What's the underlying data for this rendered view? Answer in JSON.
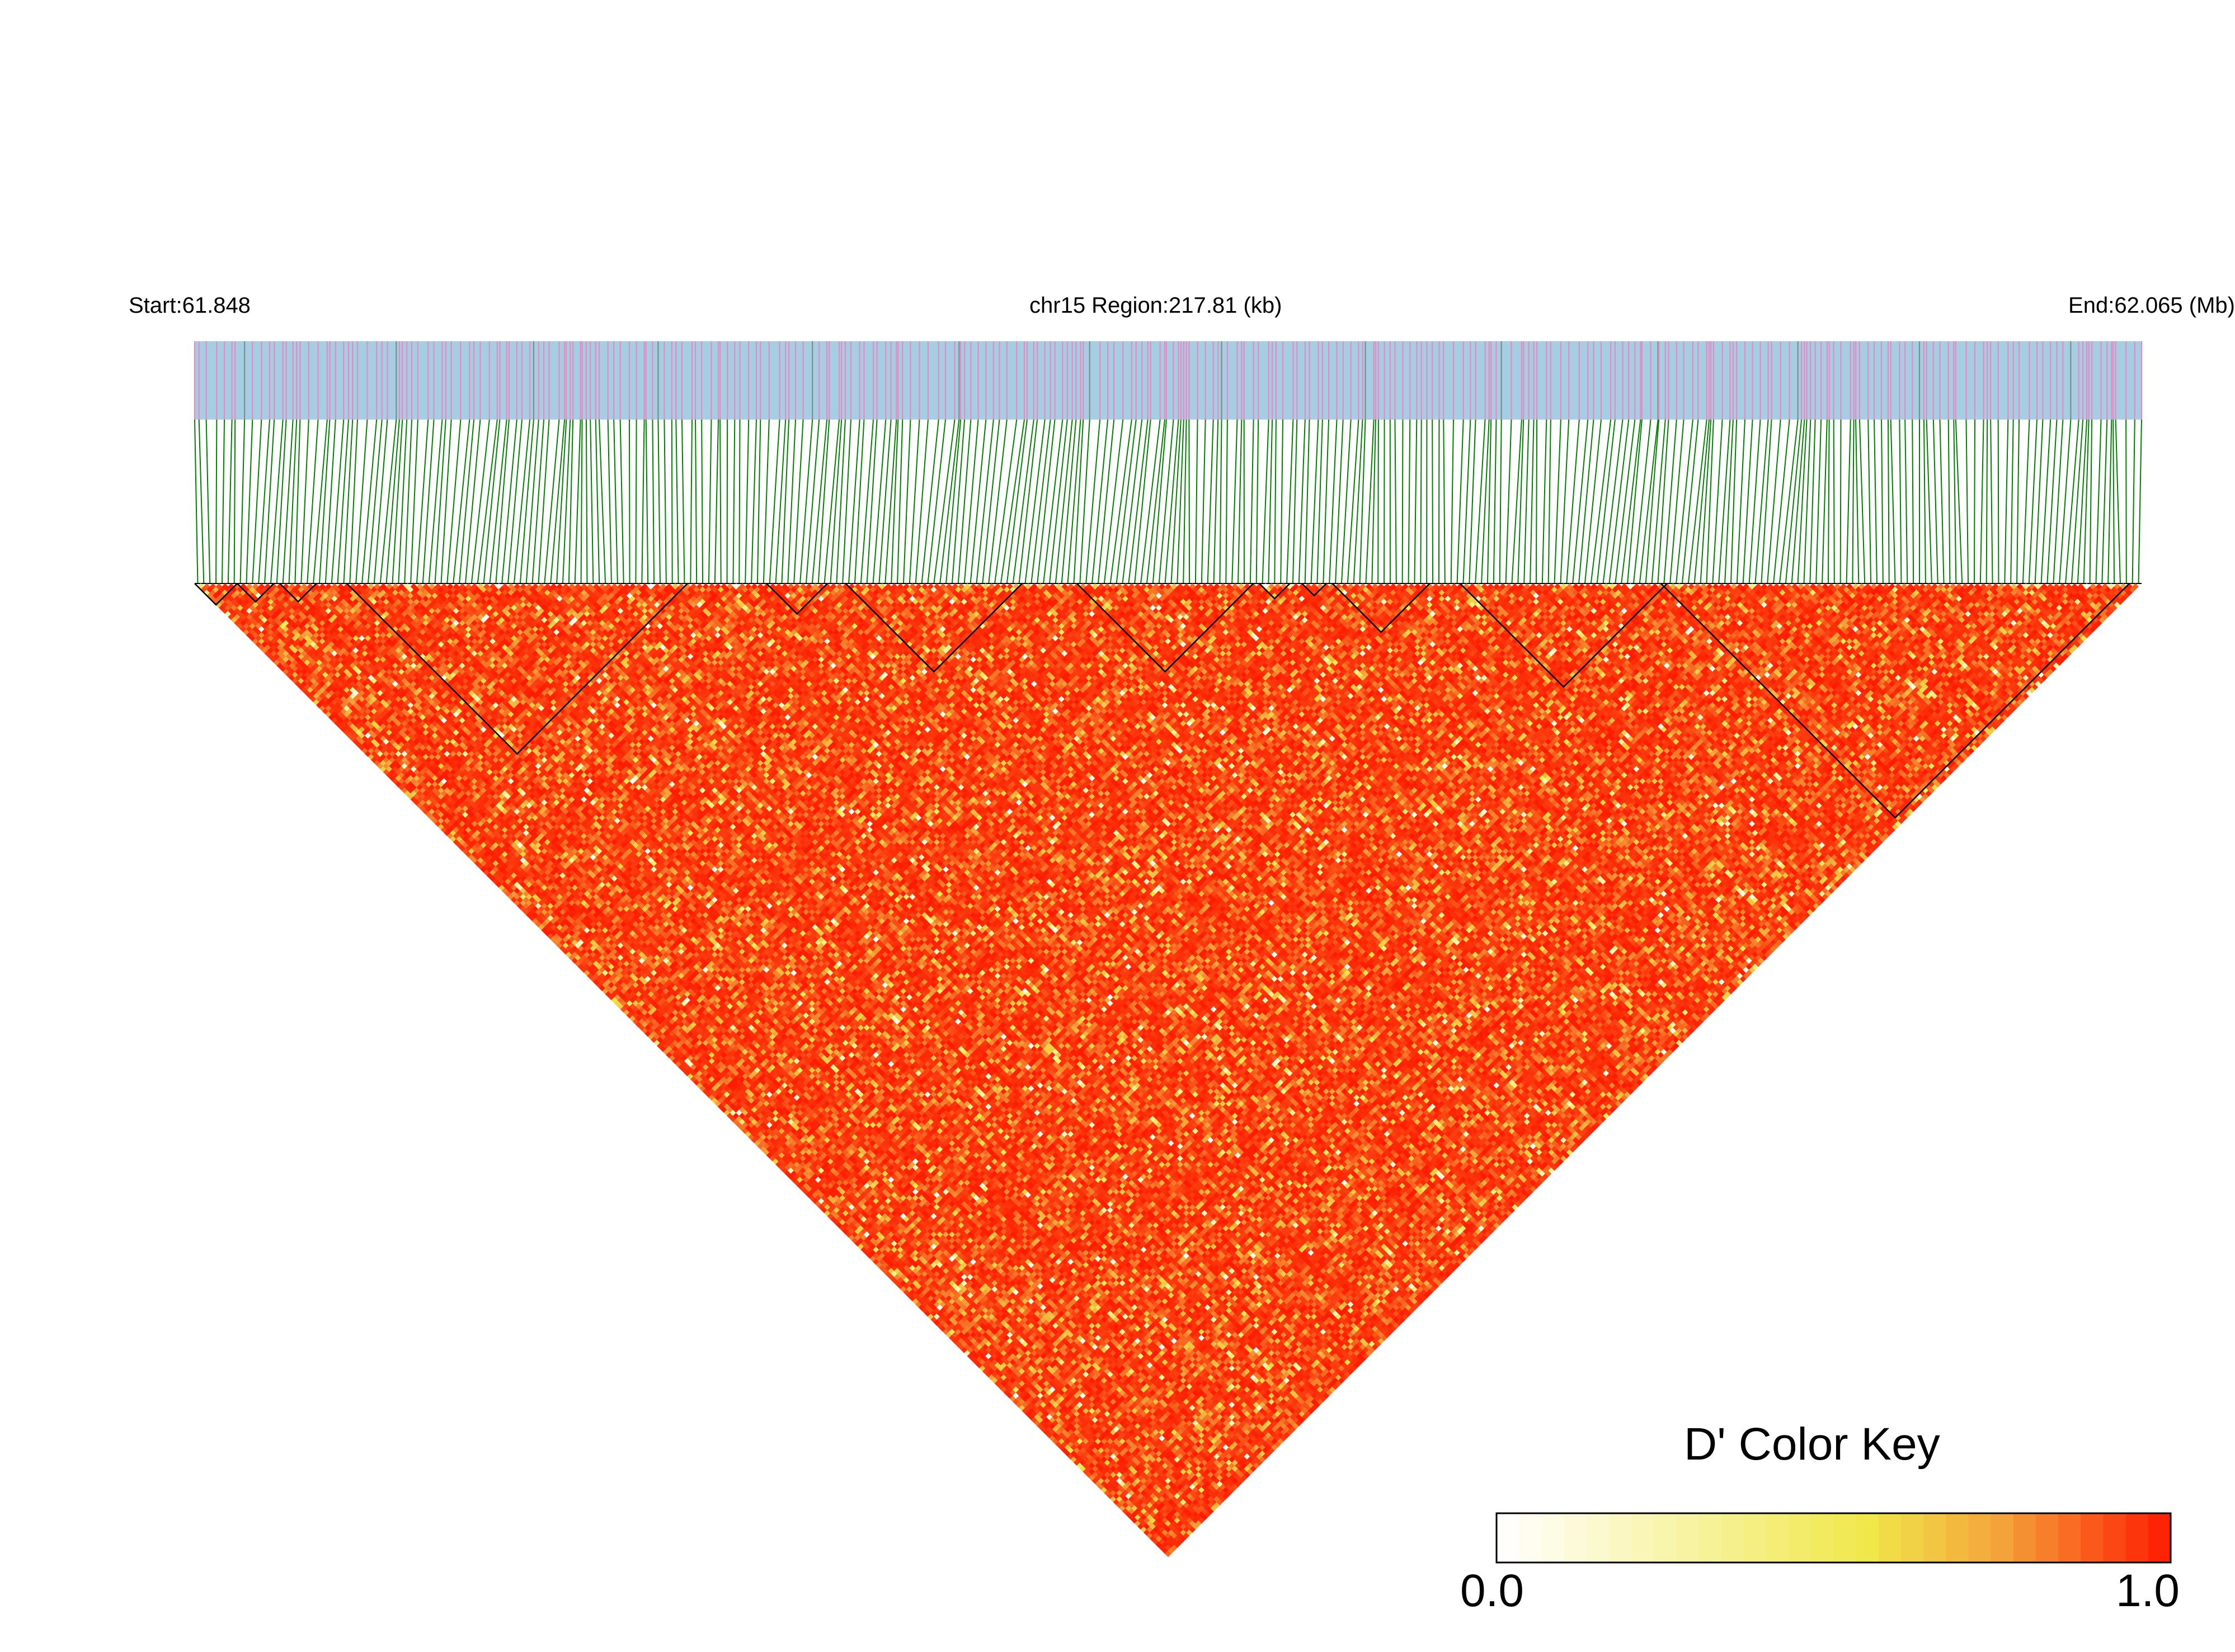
{
  "chart_data": {
    "type": "heatmap",
    "title": "",
    "header": {
      "start_label": "Start:61.848",
      "region_label": "chr15 Region:217.81 (kb)",
      "end_label": "End:62.065 (Mb)"
    },
    "region": {
      "chromosome": "chr15",
      "start_mb": 61.848,
      "end_mb": 62.065,
      "length_kb": 217.81
    },
    "snp_count": 320,
    "color_key": {
      "title": "D' Color Key",
      "min_label": "0.0",
      "max_label": "1.0",
      "range": [
        0.0,
        1.0
      ],
      "stops": [
        "#ffffff",
        "#f0e84a",
        "#f4a23a",
        "#ff1a00"
      ]
    },
    "track_colors": {
      "background": "#a6cee3",
      "snp_mark": "#e78ac3",
      "dense_mark": "#7f8c8d",
      "connector": "#008000",
      "heatmap_high": "#ff1a00"
    },
    "ld_summary": {
      "measure": "D'",
      "predominant_value": 0.95,
      "typical_range": [
        0.6,
        1.0
      ]
    },
    "ld_blocks": [
      {
        "from_snp": 0,
        "to_snp": 6
      },
      {
        "from_snp": 7,
        "to_snp": 12
      },
      {
        "from_snp": 14,
        "to_snp": 19
      },
      {
        "from_snp": 25,
        "to_snp": 80
      },
      {
        "from_snp": 94,
        "to_snp": 103
      },
      {
        "from_snp": 107,
        "to_snp": 135
      },
      {
        "from_snp": 145,
        "to_snp": 173
      },
      {
        "from_snp": 175,
        "to_snp": 179
      },
      {
        "from_snp": 182,
        "to_snp": 185
      },
      {
        "from_snp": 187,
        "to_snp": 202
      },
      {
        "from_snp": 208,
        "to_snp": 241
      },
      {
        "from_snp": 241,
        "to_snp": 317
      }
    ]
  }
}
